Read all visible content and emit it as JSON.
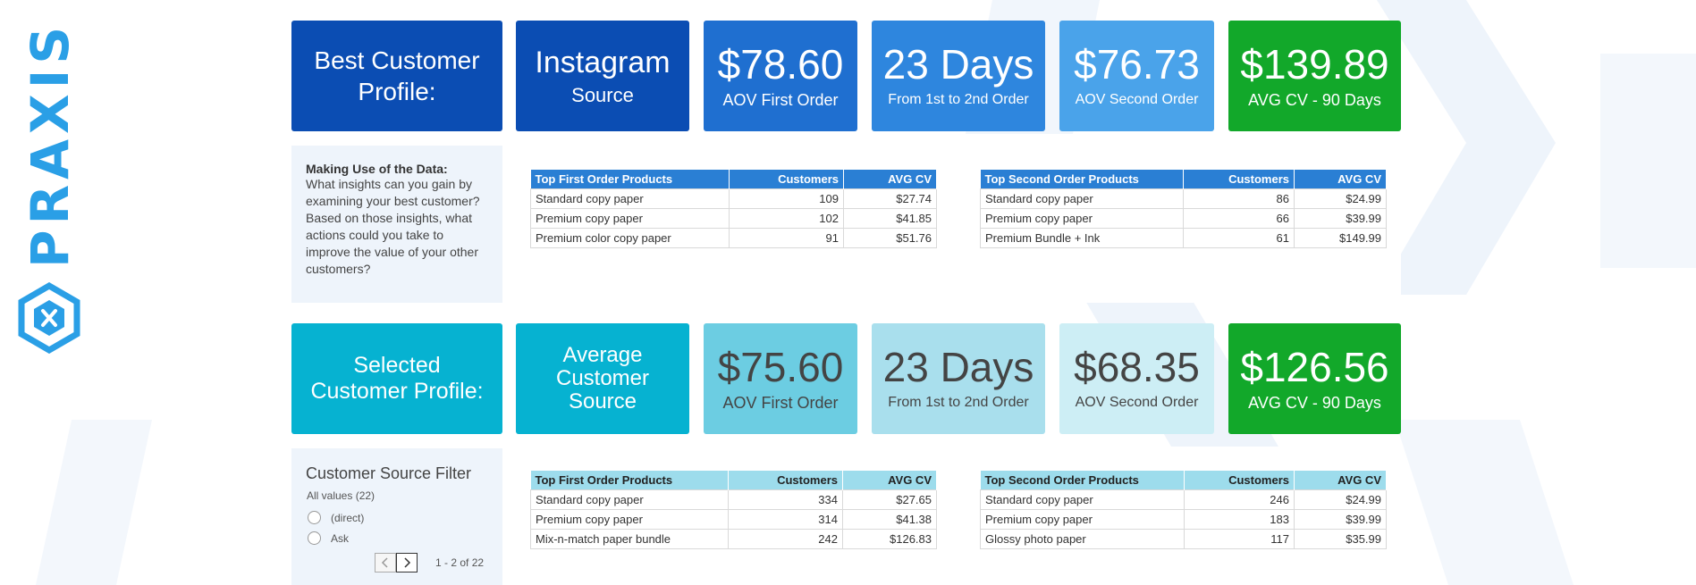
{
  "logo": {
    "text": "PRAXIS",
    "icon": "hexagon-x-icon"
  },
  "colors": {
    "dark_blue": "#0b4db3",
    "mid_blue": "#1f6fd0",
    "blue": "#2e86de",
    "light_blue": "#4aa3ea",
    "green": "#12a82a",
    "teal": "#06b2d1",
    "teal_light": "#6ccde2",
    "teal_lighter": "#a9dfed",
    "teal_lightest": "#cdeef5"
  },
  "best": {
    "profile_label": "Best Customer Profile:",
    "source_name": "Instagram",
    "source_sub": "Source",
    "metrics": [
      {
        "value": "$78.60",
        "label": "AOV First Order"
      },
      {
        "value": "23 Days",
        "label": "From 1st to 2nd Order"
      },
      {
        "value": "$76.73",
        "label": "AOV Second Order"
      },
      {
        "value": "$139.89",
        "label": "AVG CV - 90 Days"
      }
    ],
    "note_title": "Making Use of the Data:",
    "note_body": "What insights can you gain by examining your best customer? Based on those insights, what actions could you take to improve the value of your other customers?",
    "first_table": {
      "headers": [
        "Top First Order Products",
        "Customers",
        "AVG CV"
      ],
      "rows": [
        [
          "Standard copy paper",
          "109",
          "$27.74"
        ],
        [
          "Premium copy paper",
          "102",
          "$41.85"
        ],
        [
          "Premium color copy paper",
          "91",
          "$51.76"
        ]
      ]
    },
    "second_table": {
      "headers": [
        "Top Second Order Products",
        "Customers",
        "AVG CV"
      ],
      "rows": [
        [
          "Standard copy paper",
          "86",
          "$24.99"
        ],
        [
          "Premium copy paper",
          "66",
          "$39.99"
        ],
        [
          "Premium Bundle + Ink",
          "61",
          "$149.99"
        ]
      ]
    }
  },
  "selected": {
    "profile_label": "Selected Customer Profile:",
    "source_name": "Average Customer Source",
    "metrics": [
      {
        "value": "$75.60",
        "label": "AOV First Order"
      },
      {
        "value": "23 Days",
        "label": "From 1st to 2nd Order"
      },
      {
        "value": "$68.35",
        "label": "AOV Second Order"
      },
      {
        "value": "$126.56",
        "label": "AVG CV - 90 Days"
      }
    ],
    "filter": {
      "title": "Customer Source Filter",
      "subtitle": "All values (22)",
      "options": [
        "(direct)",
        "Ask"
      ],
      "prev_icon": "chevron-left-icon",
      "next_icon": "chevron-right-icon",
      "pager_text": "1 - 2 of 22"
    },
    "first_table": {
      "headers": [
        "Top First Order Products",
        "Customers",
        "AVG CV"
      ],
      "rows": [
        [
          "Standard copy paper",
          "334",
          "$27.65"
        ],
        [
          "Premium copy paper",
          "314",
          "$41.38"
        ],
        [
          "Mix-n-match paper bundle",
          "242",
          "$126.83"
        ]
      ]
    },
    "second_table": {
      "headers": [
        "Top Second Order Products",
        "Customers",
        "AVG CV"
      ],
      "rows": [
        [
          "Standard copy paper",
          "246",
          "$24.99"
        ],
        [
          "Premium copy paper",
          "183",
          "$39.99"
        ],
        [
          "Glossy photo paper",
          "117",
          "$35.99"
        ]
      ]
    }
  }
}
